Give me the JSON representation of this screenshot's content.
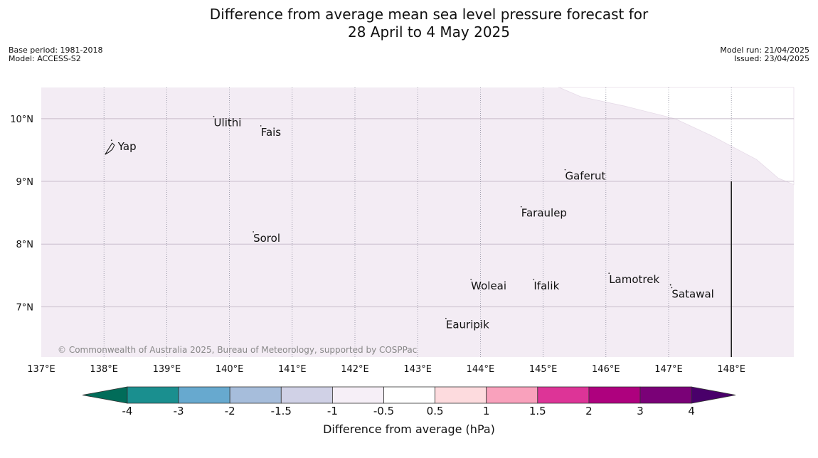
{
  "title": {
    "line1": "Difference from average mean sea level pressure forecast for",
    "line2": "28 April to 4 May 2025"
  },
  "meta_left": {
    "base_period": "Base period: 1981-2018",
    "model": "Model: ACCESS-S2"
  },
  "meta_right": {
    "model_run": "Model run: 21/04/2025",
    "issued": "Issued: 23/04/2025"
  },
  "map": {
    "lon_range": [
      137,
      149
    ],
    "lat_range": [
      6.2,
      10.5
    ],
    "lat_ticks": [
      {
        "value": 10,
        "label": "10°N"
      },
      {
        "value": 9,
        "label": "9°N"
      },
      {
        "value": 8,
        "label": "8°N"
      },
      {
        "value": 7,
        "label": "7°N"
      }
    ],
    "lon_ticks": [
      {
        "value": 137,
        "label": "137°E"
      },
      {
        "value": 138,
        "label": "138°E"
      },
      {
        "value": 139,
        "label": "139°E"
      },
      {
        "value": 140,
        "label": "140°E"
      },
      {
        "value": 141,
        "label": "141°E"
      },
      {
        "value": 142,
        "label": "142°E"
      },
      {
        "value": 143,
        "label": "143°E"
      },
      {
        "value": 144,
        "label": "144°E"
      },
      {
        "value": 145,
        "label": "145°E"
      },
      {
        "value": 146,
        "label": "146°E"
      },
      {
        "value": 147,
        "label": "147°E"
      },
      {
        "value": 148,
        "label": "148°E"
      }
    ],
    "places": [
      {
        "name": "Ulithi",
        "lon": 139.75,
        "lat": 9.9
      },
      {
        "name": "Fais",
        "lon": 140.5,
        "lat": 9.75
      },
      {
        "name": "Yap",
        "lon": 138.12,
        "lat": 9.52
      },
      {
        "name": "Gaferut",
        "lon": 145.35,
        "lat": 9.05
      },
      {
        "name": "Faraulep",
        "lon": 144.65,
        "lat": 8.46
      },
      {
        "name": "Sorol",
        "lon": 140.38,
        "lat": 8.06
      },
      {
        "name": "Lamotrek",
        "lon": 146.05,
        "lat": 7.4
      },
      {
        "name": "Woleai",
        "lon": 143.85,
        "lat": 7.3
      },
      {
        "name": "Ifalik",
        "lon": 144.85,
        "lat": 7.3
      },
      {
        "name": "Satawal",
        "lon": 147.05,
        "lat": 7.17
      },
      {
        "name": "Eauripik",
        "lon": 143.45,
        "lat": 6.68
      }
    ],
    "copyright": "© Commonwealth of Australia 2025, Bureau of Meteorology, supported by COSPPac"
  },
  "colors": {
    "map_fill": "#f3ecf4",
    "gridline": "#c8bccb"
  },
  "colorbar": {
    "label": "Difference from average (hPa)",
    "ticks": [
      "-4",
      "-3",
      "-2",
      "-1.5",
      "-1",
      "-0.5",
      "0.5",
      "1",
      "1.5",
      "2",
      "3",
      "4"
    ],
    "segment_colors": [
      "#1a8f8f",
      "#67a9cf",
      "#a6bddb",
      "#d0d1e6",
      "#f6eff7",
      "#ffffff",
      "#fddbde",
      "#f9a1bc",
      "#dd3497",
      "#ae017e",
      "#7a0177"
    ],
    "under_color": "#016c59",
    "over_color": "#49006a"
  }
}
